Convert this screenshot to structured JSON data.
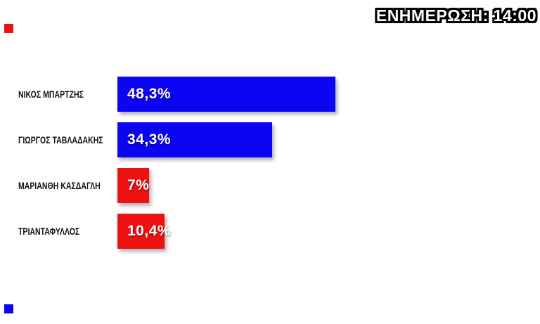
{
  "header": {
    "update_label": "ΕΝΗΜΕΡΩΣΗ: 14:00"
  },
  "chart_data": {
    "type": "bar",
    "orientation": "horizontal",
    "title": "",
    "xlabel": "",
    "ylabel": "",
    "grid": false,
    "legend": "none",
    "value_label_position": "inside-left",
    "categories": [
      "ΝΙΚΟΣ ΜΠΑΡΤΖΗΣ",
      "ΓΙΩΡΓΟΣ ΤΑΒΛΑΔΑΚΗΣ",
      "ΜΑΡΙΑΝΘΗ ΚΑΣΔΑΓΛΗ",
      "ΤΡΙΑΝΤΑΦΥΛΛΟΣ"
    ],
    "values": [
      48.3,
      34.3,
      7,
      10.4
    ],
    "value_labels": [
      "48,3%",
      "34,3%",
      "7%",
      "10,4%"
    ],
    "bar_colors": [
      "#0b05f2",
      "#0b05f2",
      "#ee1111",
      "#ee1111"
    ],
    "xlim": [
      0,
      48.3
    ]
  },
  "colors": {
    "leading_blue": "#0b05f2",
    "trailing_red": "#ee1111",
    "background": "#ffffff",
    "label_text": "#111111",
    "bar_text": "#ffffff"
  },
  "decorations": {
    "top_left_square_color": "#ee1111",
    "bottom_left_square_color": "#0b05f2"
  }
}
